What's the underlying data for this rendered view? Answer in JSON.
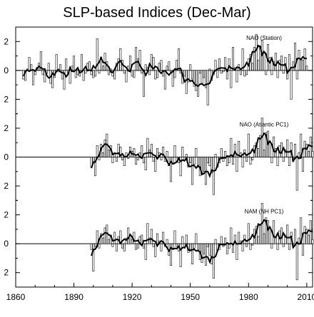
{
  "chart_data": {
    "type": "bar",
    "title": "SLP-based Indices (Dec-Mar)",
    "x_ticks": [
      1860,
      1890,
      1920,
      1950,
      1980,
      2010
    ],
    "xlim": [
      1860,
      2013
    ],
    "ylim": [
      -3,
      3
    ],
    "y_ticks": [
      -2,
      0,
      2
    ],
    "y_tick_labels": [
      "2",
      "0",
      "2"
    ],
    "grid": false,
    "smoothing": "overlaid smoothed curve",
    "panels": [
      {
        "name": "NAO (Station)",
        "start_year": 1864,
        "values": [
          -0.6,
          -0.7,
          0.1,
          0.9,
          0.4,
          -1.0,
          -0.3,
          0.2,
          0.5,
          1.3,
          -0.3,
          -0.8,
          -0.2,
          0.5,
          -0.9,
          -1.2,
          -0.5,
          1.1,
          -0.1,
          0.4,
          -0.6,
          -1.3,
          0.8,
          -0.2,
          -0.9,
          0.3,
          1.0,
          -0.5,
          -0.3,
          -0.4,
          1.1,
          -0.7,
          -0.2,
          0.5,
          0.6,
          -0.3,
          -0.5,
          -0.4,
          2.2,
          -0.2,
          0.9,
          0.3,
          1.2,
          0.6,
          -0.3,
          0.1,
          -0.4,
          -0.6,
          0.5,
          0.8,
          1.5,
          0.7,
          -0.2,
          -0.8,
          0.3,
          1.0,
          -0.4,
          -0.5,
          1.6,
          0.8,
          1.4,
          -0.2,
          -1.8,
          0.4,
          0.2,
          -0.3,
          1.1,
          0.9,
          -0.6,
          -0.5,
          0.5,
          0.7,
          -0.4,
          -1.3,
          0.3,
          0.6,
          -0.1,
          -1.1,
          -0.5,
          0.7,
          1.5,
          -0.2,
          -0.9,
          -0.4,
          -1.6,
          -0.8,
          0.4,
          -0.6,
          -1.1,
          -1.4,
          -1.8,
          -0.2,
          -0.9,
          -0.5,
          -1.2,
          -2.4,
          0.1,
          -0.7,
          -0.3,
          0.7,
          -0.5,
          0.8,
          -0.2,
          -0.1,
          0.9,
          -0.6,
          0.8,
          -1.2,
          1.6,
          0.2,
          -0.8,
          0.4,
          -0.3,
          1.5,
          -0.4,
          -0.3,
          0.8,
          1.1,
          0.5,
          1.6,
          2.5,
          0.7,
          1.7,
          2.1,
          1.2,
          -0.3,
          1.8,
          0.9,
          -0.3,
          0.6,
          1.2,
          -0.5,
          0.7,
          1.0,
          -0.2,
          0.9,
          -0.6,
          1.1,
          -2.0,
          0.6,
          1.9,
          -0.6,
          1.4,
          0.8,
          0.7,
          1.5,
          0.3
        ]
      },
      {
        "name": "NAO (Atlantic PC1)",
        "start_year": 1899,
        "values": [
          -0.7,
          -0.3,
          -1.3,
          0.8,
          -0.2,
          0.9,
          0.3,
          1.2,
          1.6,
          0.5,
          0.8,
          -0.4,
          0.3,
          -0.3,
          0.9,
          0.7,
          -0.2,
          -0.6,
          0.3,
          -0.1,
          0.7,
          0.4,
          0.6,
          -0.5,
          -0.2,
          0.3,
          0.8,
          -0.4,
          -0.9,
          1.3,
          0.5,
          0.9,
          -0.3,
          -1.0,
          0.6,
          0.3,
          -0.2,
          0.7,
          -0.3,
          0.4,
          -0.6,
          -1.7,
          -0.5,
          0.8,
          -0.3,
          -0.4,
          -1.3,
          0.7,
          -0.2,
          0.2,
          -0.7,
          -0.4,
          -1.9,
          -0.5,
          0.6,
          -0.7,
          -1.3,
          -1.1,
          -1.0,
          -1.9,
          -0.4,
          -0.6,
          -1.1,
          -2.6,
          0.2,
          -0.7,
          -0.4,
          0.6,
          -0.3,
          0.4,
          -0.6,
          -0.4,
          1.3,
          -0.5,
          0.9,
          -1.0,
          1.1,
          0.3,
          -0.7,
          0.5,
          -0.3,
          1.6,
          -0.5,
          -0.2,
          0.8,
          1.0,
          0.6,
          1.5,
          2.7,
          0.5,
          1.7,
          1.8,
          1.0,
          -0.4,
          1.4,
          0.6,
          -0.6,
          0.8,
          1.0,
          -0.3,
          0.5,
          1.2,
          -0.6,
          1.0,
          -0.3,
          0.9,
          -2.3,
          0.3,
          1.6,
          -1.0,
          1.1,
          0.9,
          0.4,
          1.4,
          0.4
        ]
      },
      {
        "name": "NAM (NH PC1)",
        "start_year": 1899,
        "values": [
          -0.4,
          -1.9,
          -0.2,
          0.9,
          -0.3,
          0.7,
          0.4,
          1.1,
          1.3,
          0.3,
          0.6,
          -0.2,
          0.8,
          -0.5,
          0.5,
          0.9,
          -0.3,
          -0.5,
          0.4,
          1.1,
          0.6,
          0.3,
          0.8,
          -0.4,
          -0.3,
          0.5,
          0.6,
          -0.3,
          -1.1,
          1.4,
          0.4,
          1.0,
          -0.2,
          -0.9,
          0.7,
          0.2,
          -0.5,
          0.8,
          -0.2,
          0.3,
          -0.8,
          -1.5,
          -0.3,
          0.9,
          -0.2,
          -0.5,
          -1.6,
          0.5,
          -0.3,
          0.6,
          -0.6,
          -0.5,
          -1.4,
          -0.3,
          0.7,
          -0.4,
          -1.1,
          -1.3,
          -0.7,
          -1.5,
          -0.2,
          -0.8,
          -1.4,
          -2.4,
          0.3,
          -0.5,
          -0.4,
          0.5,
          -0.2,
          0.4,
          -0.7,
          -0.3,
          1.1,
          -0.6,
          0.6,
          -1.1,
          0.8,
          0.2,
          -0.5,
          0.6,
          -0.2,
          1.4,
          -0.4,
          -0.1,
          1.0,
          1.2,
          0.5,
          1.3,
          2.8,
          0.7,
          1.8,
          1.6,
          1.1,
          -0.3,
          1.6,
          0.4,
          -0.4,
          0.9,
          1.1,
          -0.2,
          0.6,
          1.3,
          -0.4,
          0.8,
          -0.2,
          1.0,
          -2.5,
          0.4,
          1.8,
          -0.8,
          1.2,
          1.0,
          0.6,
          1.6,
          0.3
        ]
      }
    ]
  }
}
